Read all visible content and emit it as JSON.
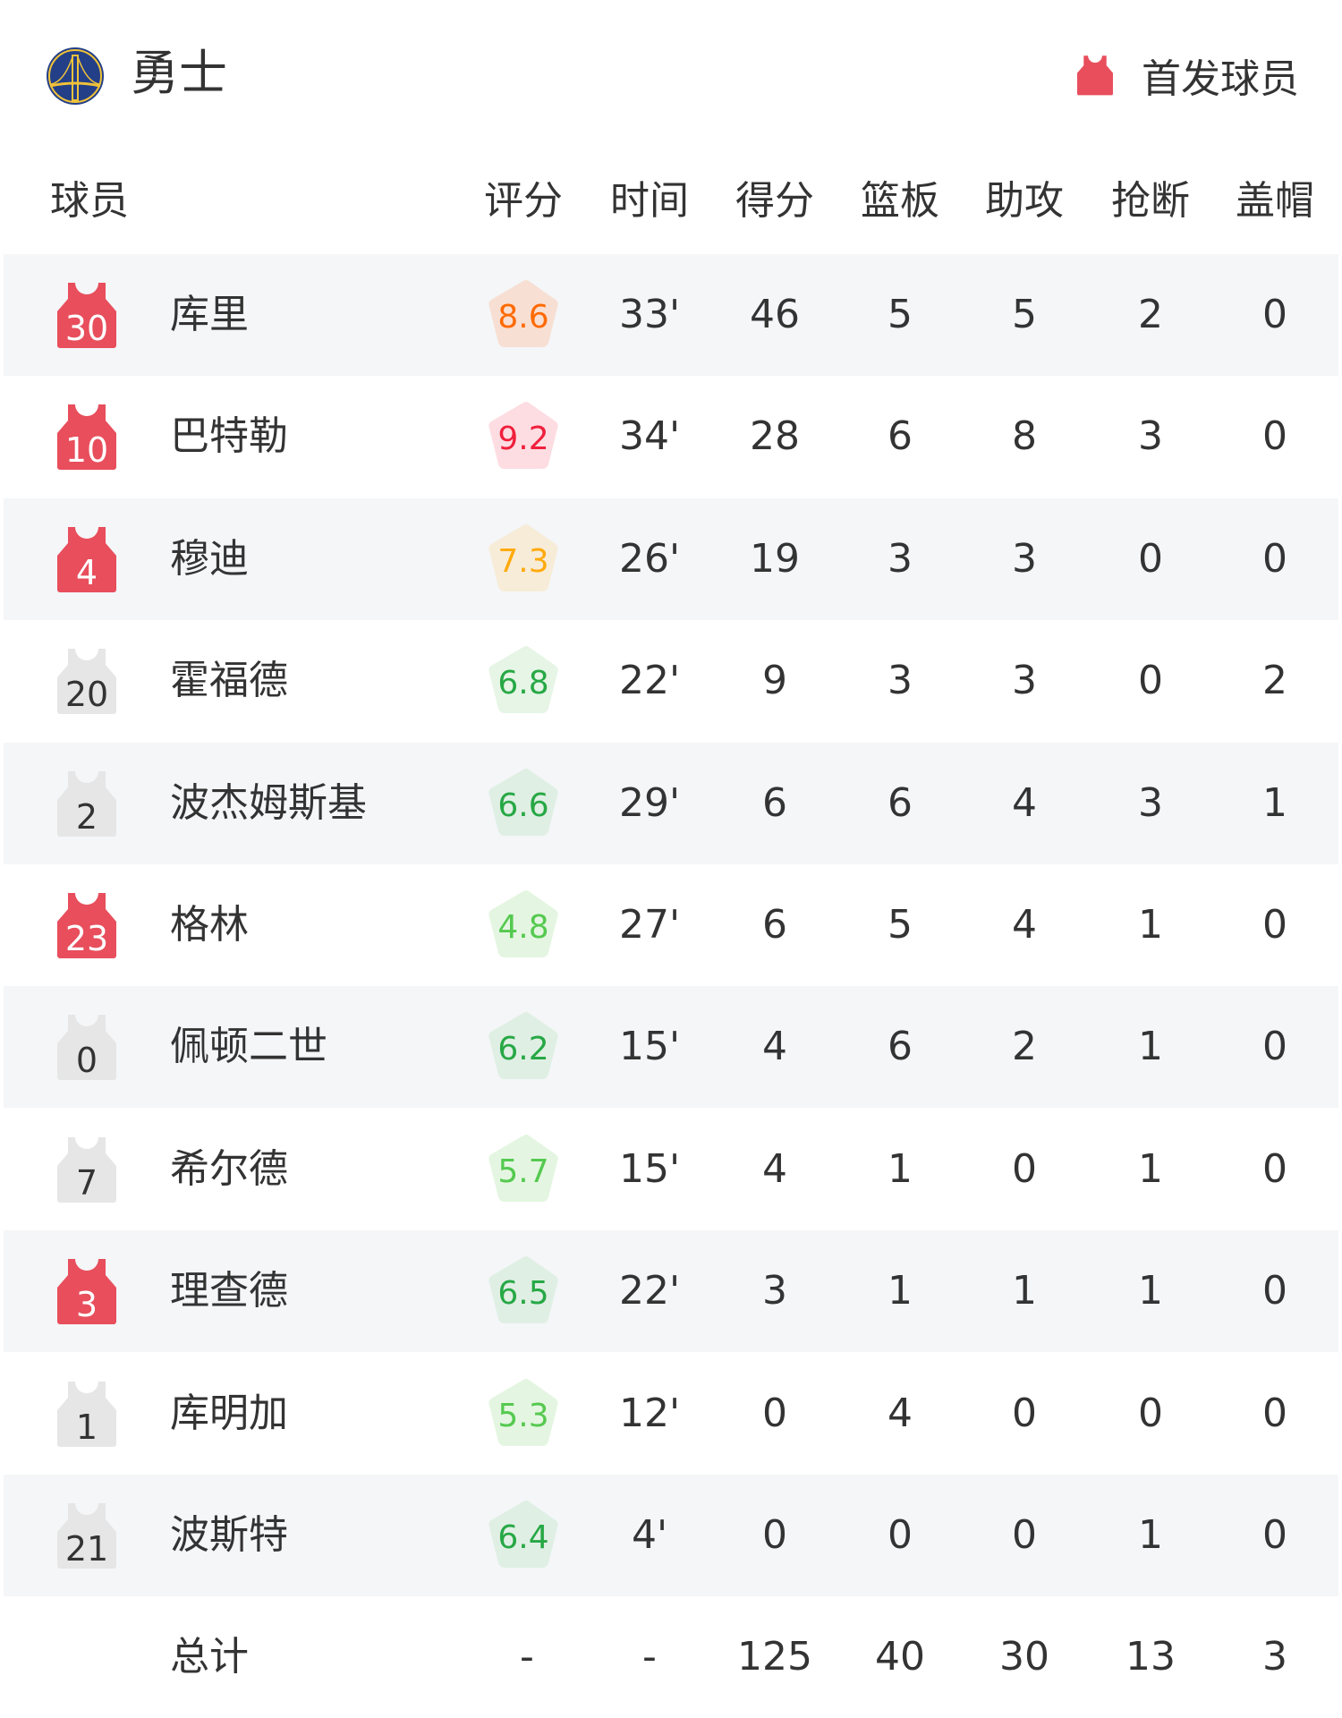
{
  "header": {
    "team_name": "勇士",
    "legend_label": "首发球员",
    "legend_icon": "jersey-icon",
    "logo_icon": "warriors-bridge-logo"
  },
  "colors": {
    "starter": "#e84e5c",
    "bench": "#e6e6e6",
    "row_alt": "#f4f6f8"
  },
  "columns": {
    "player": "球员",
    "rating": "评分",
    "time": "时间",
    "points": "得分",
    "rebounds": "篮板",
    "assists": "助攻",
    "steals": "抢断",
    "blocks": "盖帽"
  },
  "players": [
    {
      "number": "30",
      "name": "库里",
      "starter": true,
      "rating": "8.6",
      "rating_color": "#ff6a00",
      "rating_bg": "#f8dfd3",
      "time": "33'",
      "points": "46",
      "rebounds": "5",
      "assists": "5",
      "steals": "2",
      "blocks": "0"
    },
    {
      "number": "10",
      "name": "巴特勒",
      "starter": true,
      "rating": "9.2",
      "rating_color": "#f0203c",
      "rating_bg": "#fddde2",
      "time": "34'",
      "points": "28",
      "rebounds": "6",
      "assists": "8",
      "steals": "3",
      "blocks": "0"
    },
    {
      "number": "4",
      "name": "穆迪",
      "starter": true,
      "rating": "7.3",
      "rating_color": "#ffaa0d",
      "rating_bg": "#f7ecd8",
      "time": "26'",
      "points": "19",
      "rebounds": "3",
      "assists": "3",
      "steals": "0",
      "blocks": "0"
    },
    {
      "number": "20",
      "name": "霍福德",
      "starter": false,
      "rating": "6.8",
      "rating_color": "#27a845",
      "rating_bg": "#e6f5e6",
      "time": "22'",
      "points": "9",
      "rebounds": "3",
      "assists": "3",
      "steals": "0",
      "blocks": "2"
    },
    {
      "number": "2",
      "name": "波杰姆斯基",
      "starter": false,
      "rating": "6.6",
      "rating_color": "#27a845",
      "rating_bg": "#e0efe4",
      "time": "29'",
      "points": "6",
      "rebounds": "6",
      "assists": "4",
      "steals": "3",
      "blocks": "1"
    },
    {
      "number": "23",
      "name": "格林",
      "starter": true,
      "rating": "4.8",
      "rating_color": "#55c94f",
      "rating_bg": "#e4f6e1",
      "time": "27'",
      "points": "6",
      "rebounds": "5",
      "assists": "4",
      "steals": "1",
      "blocks": "0"
    },
    {
      "number": "0",
      "name": "佩顿二世",
      "starter": false,
      "rating": "6.2",
      "rating_color": "#27a845",
      "rating_bg": "#e0efe4",
      "time": "15'",
      "points": "4",
      "rebounds": "6",
      "assists": "2",
      "steals": "1",
      "blocks": "0"
    },
    {
      "number": "7",
      "name": "希尔德",
      "starter": false,
      "rating": "5.7",
      "rating_color": "#55c94f",
      "rating_bg": "#e4f6e1",
      "time": "15'",
      "points": "4",
      "rebounds": "1",
      "assists": "0",
      "steals": "1",
      "blocks": "0"
    },
    {
      "number": "3",
      "name": "理查德",
      "starter": true,
      "rating": "6.5",
      "rating_color": "#27a845",
      "rating_bg": "#e0efe4",
      "time": "22'",
      "points": "3",
      "rebounds": "1",
      "assists": "1",
      "steals": "1",
      "blocks": "0"
    },
    {
      "number": "1",
      "name": "库明加",
      "starter": false,
      "rating": "5.3",
      "rating_color": "#55c94f",
      "rating_bg": "#e4f6e1",
      "time": "12'",
      "points": "0",
      "rebounds": "4",
      "assists": "0",
      "steals": "0",
      "blocks": "0"
    },
    {
      "number": "21",
      "name": "波斯特",
      "starter": false,
      "rating": "6.4",
      "rating_color": "#27a845",
      "rating_bg": "#e0efe4",
      "time": "4'",
      "points": "0",
      "rebounds": "0",
      "assists": "0",
      "steals": "1",
      "blocks": "0"
    }
  ],
  "totals": {
    "label": "总计",
    "rating": "-",
    "time": "-",
    "points": "125",
    "rebounds": "40",
    "assists": "30",
    "steals": "13",
    "blocks": "3"
  }
}
